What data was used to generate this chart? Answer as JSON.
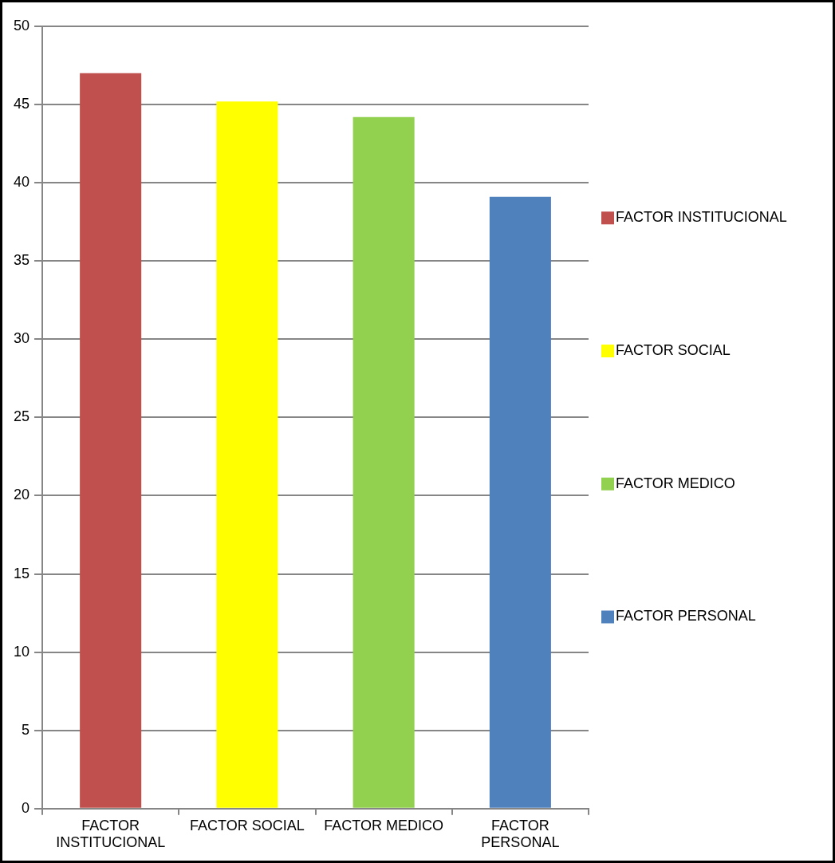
{
  "chart_data": {
    "type": "bar",
    "categories": [
      "FACTOR INSTITUCIONAL",
      "FACTOR SOCIAL",
      "FACTOR MEDICO",
      "FACTOR PERSONAL"
    ],
    "series": [
      {
        "name": "FACTOR INSTITUCIONAL",
        "color": "#c0504d",
        "values": [
          47,
          null,
          null,
          null
        ]
      },
      {
        "name": "FACTOR SOCIAL",
        "color": "#ffff00",
        "values": [
          null,
          45.2,
          null,
          null
        ]
      },
      {
        "name": "FACTOR MEDICO",
        "color": "#92d050",
        "values": [
          null,
          null,
          44.2,
          null
        ]
      },
      {
        "name": "FACTOR PERSONAL",
        "color": "#4f81bd",
        "values": [
          null,
          null,
          null,
          39.1
        ]
      }
    ],
    "ylim": [
      0,
      50
    ],
    "yticks": [
      0,
      5,
      10,
      15,
      20,
      25,
      30,
      35,
      40,
      45,
      50
    ],
    "grid": "y",
    "legend": "right"
  }
}
